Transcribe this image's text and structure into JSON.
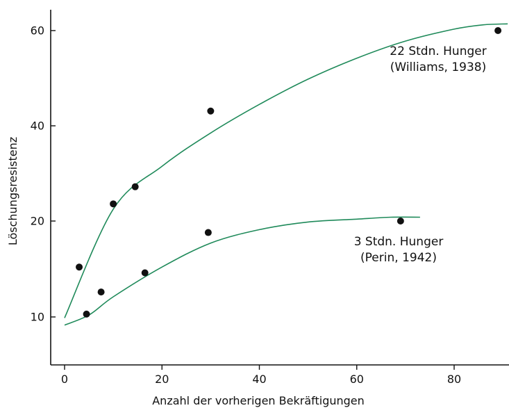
{
  "chart_data": {
    "type": "scatter",
    "title": "",
    "xlabel": "Anzahl der vorherigen Bekräftigungen",
    "ylabel": "Löschungsresistenz",
    "xlim": [
      -3,
      91
    ],
    "y_ticks": [
      10,
      20,
      40,
      60
    ],
    "x_ticks": [
      0,
      20,
      40,
      60,
      80
    ],
    "grid": false,
    "series": [
      {
        "id": "williams",
        "points": [
          [
            3,
            15.2
          ],
          [
            10,
            23.6
          ],
          [
            14.5,
            27.2
          ],
          [
            30,
            43.1
          ],
          [
            89,
            60
          ]
        ],
        "fit_curve": [
          [
            0,
            9.8
          ],
          [
            10,
            22.5
          ],
          [
            20,
            31.5
          ],
          [
            30,
            38.5
          ],
          [
            40,
            44.5
          ],
          [
            50,
            49.8
          ],
          [
            60,
            54.2
          ],
          [
            70,
            57.8
          ],
          [
            80,
            60.3
          ],
          [
            86,
            61.2
          ],
          [
            91,
            61.4
          ]
        ],
        "annotation": [
          "22 Stdn. Hunger",
          "(Williams, 1938)"
        ],
        "color": "#1f8a5a"
      },
      {
        "id": "perin",
        "points": [
          [
            4.5,
            10.3
          ],
          [
            7.5,
            12.6
          ],
          [
            16.5,
            14.6
          ],
          [
            29.5,
            18.8
          ],
          [
            69,
            20
          ]
        ],
        "fit_curve": [
          [
            0,
            8.3
          ],
          [
            5,
            10.2
          ],
          [
            10,
            12.1
          ],
          [
            20,
            15.2
          ],
          [
            30,
            17.7
          ],
          [
            40,
            19.1
          ],
          [
            50,
            19.9
          ],
          [
            60,
            20.4
          ],
          [
            67,
            20.8
          ],
          [
            73,
            20.8
          ]
        ],
        "annotation": [
          "3 Stdn. Hunger",
          "(Perin, 1942)"
        ],
        "color": "#1f8a5a"
      }
    ]
  }
}
